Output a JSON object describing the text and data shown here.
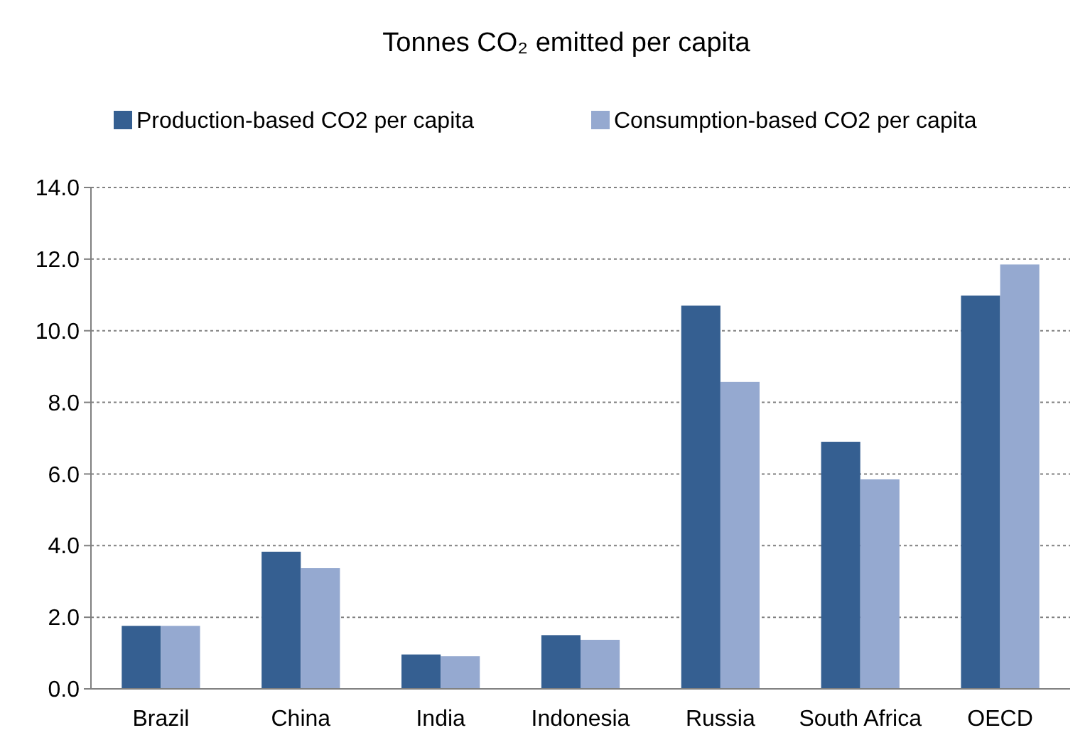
{
  "chart_data": {
    "type": "bar",
    "title": "Tonnes CO₂ emitted per capita",
    "categories": [
      "Brazil",
      "China",
      "India",
      "Indonesia",
      "Russia",
      "South Africa",
      "OECD"
    ],
    "series": [
      {
        "name": "Production-based CO2 per capita",
        "color": "#355f91",
        "values": [
          1.76,
          3.83,
          0.96,
          1.5,
          10.7,
          6.9,
          10.98
        ]
      },
      {
        "name": "Consumption-based CO2 per capita",
        "color": "#95a9d0",
        "values": [
          1.76,
          3.37,
          0.91,
          1.37,
          8.57,
          5.85,
          11.85
        ]
      }
    ],
    "ylim": [
      0,
      14
    ],
    "yticks": [
      {
        "value": 0,
        "label": "0.0"
      },
      {
        "value": 2,
        "label": "2.0"
      },
      {
        "value": 4,
        "label": "4.0"
      },
      {
        "value": 6,
        "label": "6.0"
      },
      {
        "value": 8,
        "label": "8.0"
      },
      {
        "value": 10,
        "label": "10.0"
      },
      {
        "value": 12,
        "label": "12.0"
      },
      {
        "value": 14,
        "label": "14.0"
      }
    ],
    "grid": "y",
    "legend": "top"
  }
}
